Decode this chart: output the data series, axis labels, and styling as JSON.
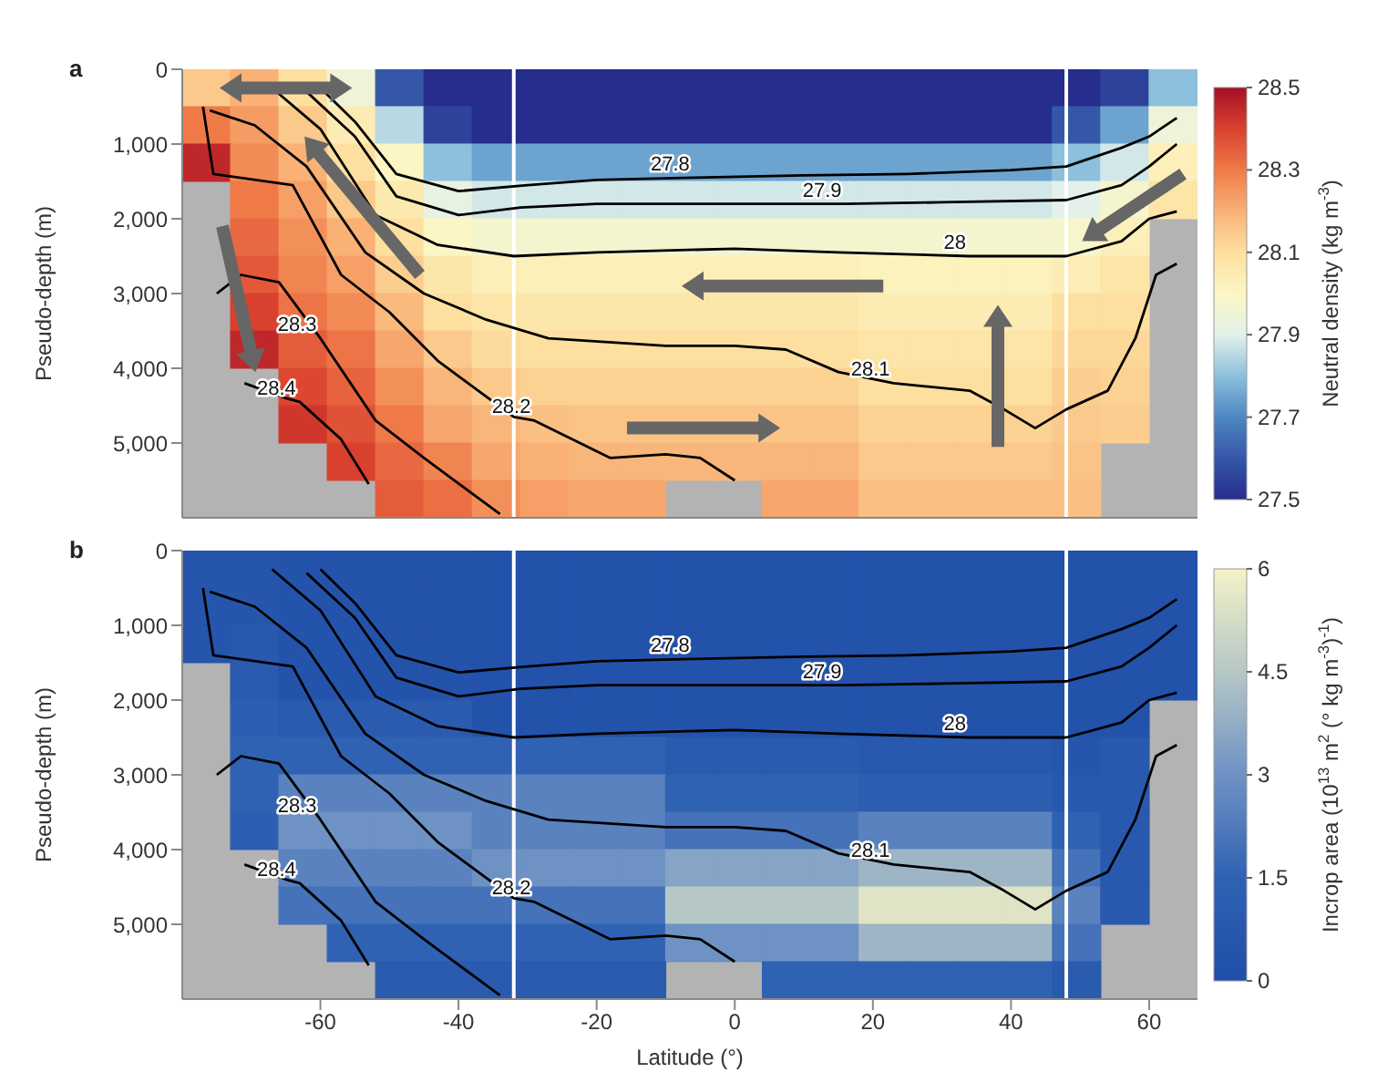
{
  "chart_data": [
    {
      "type": "heatmap",
      "title": "a",
      "ylabel": "Pseudo-depth (m)",
      "clabel": "Neutral density (kg m$^{-3}$)",
      "tick_labels": "y",
      "xlim": [
        -80,
        67
      ],
      "xticks": [
        -60,
        -40,
        -20,
        0,
        20,
        40,
        60
      ],
      "ylim": [
        6000,
        0
      ],
      "yticks": [
        0,
        {
          "value": 1000,
          "label": "1,000"
        },
        {
          "value": 2000,
          "label": "2,000"
        },
        {
          "value": 3000,
          "label": "3,000"
        },
        {
          "value": 4000,
          "label": "4,000"
        },
        {
          "value": 5000,
          "label": "5,000"
        }
      ],
      "clim": [
        27.5,
        28.5
      ],
      "cticks": [
        27.5,
        27.7,
        27.9,
        28.1,
        28.3,
        28.5
      ],
      "cells": [
        [
          28.15,
          28.2,
          28.1,
          27.95,
          27.6,
          27.5,
          27.5,
          27.5,
          27.5,
          27.5,
          27.5,
          27.5,
          27.5,
          27.5,
          27.5,
          27.5,
          27.5,
          27.5,
          27.5,
          27.55,
          27.8
        ],
        [
          28.3,
          28.24,
          28.15,
          28.05,
          27.85,
          27.55,
          27.5,
          27.5,
          27.5,
          27.5,
          27.5,
          27.5,
          27.5,
          27.5,
          27.5,
          27.5,
          27.5,
          27.5,
          27.6,
          27.75,
          27.95
        ],
        [
          28.45,
          28.27,
          28.2,
          28.1,
          28.0,
          27.8,
          27.75,
          27.75,
          27.75,
          27.75,
          27.75,
          27.75,
          27.75,
          27.75,
          27.75,
          27.75,
          27.75,
          27.75,
          27.8,
          27.88,
          28.03
        ],
        [
          null,
          28.3,
          28.23,
          28.15,
          28.06,
          27.92,
          27.88,
          27.88,
          27.88,
          27.88,
          27.88,
          27.88,
          27.88,
          27.88,
          27.88,
          27.88,
          27.88,
          27.88,
          27.9,
          27.97,
          28.08
        ],
        [
          null,
          28.33,
          28.26,
          28.2,
          28.1,
          28.0,
          27.97,
          27.97,
          27.97,
          27.97,
          27.97,
          27.97,
          27.97,
          27.97,
          27.97,
          27.97,
          27.97,
          27.97,
          27.98,
          28.03,
          null
        ],
        [
          null,
          28.36,
          28.28,
          28.23,
          28.14,
          28.07,
          28.03,
          28.03,
          28.03,
          28.03,
          28.03,
          28.03,
          28.03,
          28.03,
          28.02,
          28.02,
          28.02,
          28.02,
          28.04,
          28.08,
          null
        ],
        [
          null,
          28.4,
          28.31,
          28.27,
          28.18,
          28.1,
          28.08,
          28.07,
          28.07,
          28.07,
          28.07,
          28.07,
          28.07,
          28.07,
          28.05,
          28.05,
          28.05,
          28.05,
          28.1,
          28.1,
          null
        ],
        [
          null,
          28.45,
          28.35,
          28.31,
          28.22,
          28.15,
          28.11,
          28.1,
          28.1,
          28.1,
          28.1,
          28.1,
          28.1,
          28.1,
          28.08,
          28.08,
          28.08,
          28.08,
          28.12,
          28.12,
          null
        ],
        [
          null,
          null,
          28.39,
          28.34,
          28.26,
          28.19,
          28.15,
          28.13,
          28.13,
          28.13,
          28.13,
          28.13,
          28.13,
          28.13,
          28.1,
          28.1,
          28.1,
          28.1,
          28.14,
          28.13,
          null
        ],
        [
          null,
          null,
          28.42,
          28.37,
          28.3,
          28.22,
          28.19,
          28.17,
          28.16,
          28.16,
          28.16,
          28.16,
          28.16,
          28.16,
          28.13,
          28.13,
          28.13,
          28.13,
          28.15,
          28.14,
          null
        ],
        [
          null,
          null,
          null,
          28.4,
          28.33,
          28.28,
          28.22,
          28.2,
          28.19,
          28.19,
          28.19,
          28.19,
          28.19,
          28.19,
          28.15,
          28.15,
          28.15,
          28.15,
          28.16,
          null,
          null
        ],
        [
          null,
          null,
          null,
          null,
          28.35,
          28.32,
          28.26,
          28.23,
          28.22,
          28.22,
          null,
          null,
          28.22,
          28.22,
          28.17,
          28.17,
          28.17,
          28.17,
          28.17,
          null,
          null
        ]
      ],
      "series": [
        {
          "type": "line",
          "name": "27.8",
          "color": "#000000",
          "x": [
            -60,
            -55,
            -49,
            -40,
            -30,
            -20,
            -6,
            10,
            25,
            40,
            48,
            56,
            60,
            64
          ],
          "values": [
            250,
            700,
            1400,
            1630,
            1550,
            1480,
            1450,
            1420,
            1400,
            1350,
            1300,
            1050,
            900,
            650
          ]
        },
        {
          "type": "line",
          "name": "27.9",
          "color": "#000000",
          "x": [
            -62,
            -55,
            -49,
            -40,
            -31,
            -20,
            0,
            16,
            30,
            48,
            56,
            60,
            64
          ],
          "values": [
            300,
            900,
            1700,
            1950,
            1850,
            1800,
            1800,
            1800,
            1780,
            1750,
            1550,
            1300,
            1000
          ]
        },
        {
          "type": "line",
          "name": "28",
          "color": "#000000",
          "x": [
            -67,
            -60,
            -52,
            -43,
            -32,
            -20,
            0,
            15,
            34,
            48,
            56,
            60,
            64
          ],
          "values": [
            250,
            800,
            1950,
            2350,
            2500,
            2450,
            2400,
            2450,
            2500,
            2500,
            2300,
            2000,
            1900
          ]
        },
        {
          "type": "line",
          "name": "28.1",
          "color": "#000000",
          "x": [
            -76,
            -69.5,
            -62,
            -53.5,
            -45,
            -36,
            -27,
            -10,
            0,
            7.4,
            15,
            23,
            34,
            39,
            43.5,
            48,
            54,
            58,
            61,
            64
          ],
          "values": [
            550,
            750,
            1300,
            2450,
            3000,
            3350,
            3600,
            3700,
            3700,
            3750,
            4050,
            4200,
            4300,
            4550,
            4800,
            4550,
            4300,
            3600,
            2750,
            2600
          ]
        },
        {
          "type": "line",
          "name": "28.2",
          "color": "#000000",
          "x": [
            -77,
            -75.5,
            -64,
            -57,
            -50,
            -43,
            -32,
            -29,
            -18,
            -10,
            -5,
            0
          ],
          "values": [
            500,
            1400,
            1550,
            2750,
            3250,
            3900,
            4650,
            4700,
            5200,
            5150,
            5200,
            5500
          ]
        },
        {
          "type": "line",
          "name": "28.3",
          "color": "#000000",
          "x": [
            -75,
            -71.5,
            -66,
            -60,
            -52,
            -45,
            -34
          ],
          "values": [
            3000,
            2750,
            2850,
            3600,
            4700,
            5200,
            5950
          ]
        },
        {
          "type": "line",
          "name": "28.4",
          "color": "#000000",
          "x": [
            -71,
            -65,
            -63,
            -57,
            -53
          ],
          "values": [
            4200,
            4400,
            4450,
            4950,
            5550
          ]
        }
      ],
      "ref_lines": [
        {
          "axis": "x",
          "value": -32,
          "color": "#ffffff"
        },
        {
          "axis": "x",
          "value": 48,
          "color": "#ffffff"
        }
      ]
    },
    {
      "type": "heatmap",
      "title": "b",
      "xlabel": "Latitude (°)",
      "ylabel": "Pseudo-depth (m)",
      "clabel": "Incrop area (10$^{13}$ m$^{2}$ (° kg m$^{-3}$)$^{-1}$)",
      "xlim": [
        -80,
        67
      ],
      "xticks": [
        -60,
        -40,
        -20,
        0,
        20,
        40,
        60
      ],
      "ylim": [
        6000,
        0
      ],
      "yticks": [
        0,
        {
          "value": 1000,
          "label": "1,000"
        },
        {
          "value": 2000,
          "label": "2,000"
        },
        {
          "value": 3000,
          "label": "3,000"
        },
        {
          "value": 4000,
          "label": "4,000"
        },
        {
          "value": 5000,
          "label": "5,000"
        }
      ],
      "clim": [
        0,
        6
      ],
      "cticks": [
        0,
        1.5,
        3,
        4.5,
        6
      ],
      "cells": [
        [
          0.5,
          0.5,
          0.4,
          0.4,
          0.4,
          0.4,
          0.3,
          0.3,
          0.3,
          0.3,
          0.3,
          0.3,
          0.3,
          0.3,
          0.3,
          0.3,
          0.3,
          0.3,
          0.3,
          0.3,
          0.3
        ],
        [
          0.5,
          0.6,
          0.4,
          0.4,
          0.4,
          0.4,
          0.3,
          0.3,
          0.3,
          0.3,
          0.3,
          0.3,
          0.3,
          0.3,
          0.3,
          0.3,
          0.3,
          0.3,
          0.3,
          0.3,
          0.3
        ],
        [
          0.5,
          0.8,
          0.4,
          0.4,
          0.4,
          0.4,
          0.3,
          0.3,
          0.3,
          0.3,
          0.3,
          0.3,
          0.3,
          0.3,
          0.3,
          0.3,
          0.3,
          0.3,
          0.3,
          0.3,
          0.3
        ],
        [
          null,
          1,
          0.4,
          0.4,
          0.4,
          0.4,
          0.3,
          0.3,
          0.3,
          0.3,
          0.3,
          0.3,
          0.3,
          0.3,
          0.3,
          0.3,
          0.3,
          0.3,
          0.3,
          0.3,
          0.3
        ],
        [
          null,
          1.2,
          1,
          1,
          1,
          1,
          0.3,
          0.3,
          0.3,
          0.3,
          0.3,
          0.3,
          0.3,
          0.3,
          0.3,
          0.3,
          0.3,
          0.3,
          0.3,
          0.3,
          null
        ],
        [
          null,
          1.5,
          1.5,
          1.5,
          1.5,
          1.5,
          1.5,
          1.5,
          1.5,
          1.5,
          1,
          1,
          1,
          1,
          0.8,
          0.8,
          0.8,
          0.8,
          0.5,
          0.8,
          null
        ],
        [
          null,
          1.5,
          2.5,
          2.5,
          2.5,
          2.5,
          2.5,
          2.5,
          2.5,
          2.5,
          1.5,
          1.5,
          1.5,
          1.5,
          1.2,
          1.2,
          1.2,
          1.2,
          0.8,
          0.8,
          null
        ],
        [
          null,
          1.2,
          3,
          3,
          3,
          3,
          2.5,
          2.5,
          2.5,
          2.5,
          2,
          2,
          2,
          2,
          2.5,
          2.5,
          2.5,
          2.5,
          1.5,
          0.8,
          null
        ],
        [
          null,
          null,
          2.5,
          2.5,
          2.5,
          2.5,
          3,
          3,
          3,
          3,
          3.5,
          3.5,
          3.5,
          3.5,
          4,
          4,
          4,
          4,
          2,
          0.8,
          null
        ],
        [
          null,
          null,
          2,
          2,
          2,
          2,
          2,
          2,
          2,
          2,
          4.5,
          4.5,
          4.5,
          4.5,
          5.5,
          5.5,
          5.5,
          5.5,
          2.5,
          0.8,
          null
        ],
        [
          null,
          null,
          null,
          1.5,
          1.5,
          1.5,
          1.5,
          1.5,
          1.5,
          1.5,
          3,
          3,
          3,
          3,
          4,
          4,
          4,
          4,
          2,
          null,
          null
        ],
        [
          null,
          null,
          null,
          null,
          1,
          1,
          1,
          1,
          1,
          1,
          null,
          null,
          1.5,
          1.5,
          1.5,
          1.5,
          1.5,
          1.5,
          1,
          null,
          null
        ]
      ],
      "series": [
        {
          "type": "line",
          "name": "27.8",
          "color": "#000000",
          "x": [
            -60,
            -55,
            -49,
            -40,
            -30,
            -20,
            -6,
            10,
            25,
            40,
            48,
            56,
            60,
            64
          ],
          "values": [
            250,
            700,
            1400,
            1630,
            1550,
            1480,
            1450,
            1420,
            1400,
            1350,
            1300,
            1050,
            900,
            650
          ]
        },
        {
          "type": "line",
          "name": "27.9",
          "color": "#000000",
          "x": [
            -62,
            -55,
            -49,
            -40,
            -31,
            -20,
            0,
            16,
            30,
            48,
            56,
            60,
            64
          ],
          "values": [
            300,
            900,
            1700,
            1950,
            1850,
            1800,
            1800,
            1800,
            1780,
            1750,
            1550,
            1300,
            1000
          ]
        },
        {
          "type": "line",
          "name": "28",
          "color": "#000000",
          "x": [
            -67,
            -60,
            -52,
            -43,
            -32,
            -20,
            0,
            15,
            34,
            48,
            56,
            60,
            64
          ],
          "values": [
            250,
            800,
            1950,
            2350,
            2500,
            2450,
            2400,
            2450,
            2500,
            2500,
            2300,
            2000,
            1900
          ]
        },
        {
          "type": "line",
          "name": "28.1",
          "color": "#000000",
          "x": [
            -76,
            -69.5,
            -62,
            -53.5,
            -45,
            -36,
            -27,
            -10,
            0,
            7.4,
            15,
            23,
            34,
            39,
            43.5,
            48,
            54,
            58,
            61,
            64
          ],
          "values": [
            550,
            750,
            1300,
            2450,
            3000,
            3350,
            3600,
            3700,
            3700,
            3750,
            4050,
            4200,
            4300,
            4550,
            4800,
            4550,
            4300,
            3600,
            2750,
            2600
          ]
        },
        {
          "type": "line",
          "name": "28.2",
          "color": "#000000",
          "x": [
            -77,
            -75.5,
            -64,
            -57,
            -50,
            -43,
            -32,
            -29,
            -18,
            -10,
            -5,
            0
          ],
          "values": [
            500,
            1400,
            1550,
            2750,
            3250,
            3900,
            4650,
            4700,
            5200,
            5150,
            5200,
            5500
          ]
        },
        {
          "type": "line",
          "name": "28.3",
          "color": "#000000",
          "x": [
            -75,
            -71.5,
            -66,
            -60,
            -52,
            -45,
            -34
          ],
          "values": [
            3000,
            2750,
            2850,
            3600,
            4700,
            5200,
            5950
          ]
        },
        {
          "type": "line",
          "name": "28.4",
          "color": "#000000",
          "x": [
            -71,
            -65,
            -63,
            -57,
            -53
          ],
          "values": [
            4200,
            4400,
            4450,
            4950,
            5550
          ]
        }
      ],
      "ref_lines": [
        {
          "axis": "x",
          "value": -32,
          "color": "#ffffff"
        },
        {
          "axis": "x",
          "value": 48,
          "color": "#ffffff"
        }
      ]
    }
  ]
}
